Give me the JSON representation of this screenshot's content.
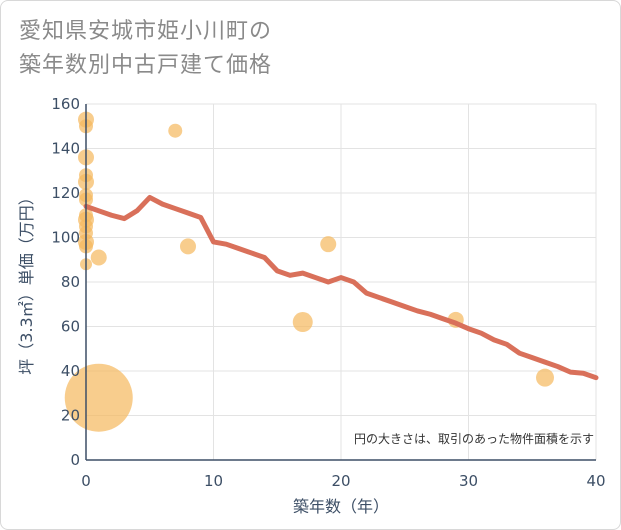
{
  "title_line1": "愛知県安城市姫小川町の",
  "title_line2": "築年数別中古戸建て価格",
  "chart_data": {
    "type": "scatter+line",
    "xlabel": "築年数（年）",
    "ylabel": "坪（3.3㎡）単価（万円）",
    "xlim": [
      0,
      40
    ],
    "ylim": [
      0,
      160
    ],
    "xticks": [
      0,
      10,
      20,
      30,
      40
    ],
    "yticks": [
      0,
      20,
      40,
      60,
      80,
      100,
      120,
      140,
      160
    ],
    "note": "円の大きさは、取引のあった物件面積を示す",
    "colors": {
      "bubble": "#f5b85c",
      "line": "#d9705a",
      "grid": "#e3e3e3",
      "axis": "#3d4f66"
    },
    "scatter": [
      {
        "x": 0,
        "y": 153,
        "s": 8
      },
      {
        "x": 0,
        "y": 150,
        "s": 7
      },
      {
        "x": 0,
        "y": 136,
        "s": 8
      },
      {
        "x": 0,
        "y": 128,
        "s": 7
      },
      {
        "x": 0,
        "y": 125,
        "s": 8
      },
      {
        "x": 0,
        "y": 119,
        "s": 7
      },
      {
        "x": 0,
        "y": 117,
        "s": 7
      },
      {
        "x": 0,
        "y": 110,
        "s": 7
      },
      {
        "x": 0,
        "y": 108,
        "s": 8
      },
      {
        "x": 0,
        "y": 105,
        "s": 7
      },
      {
        "x": 0,
        "y": 102,
        "s": 7
      },
      {
        "x": 0,
        "y": 98,
        "s": 8
      },
      {
        "x": 0,
        "y": 96,
        "s": 7
      },
      {
        "x": 0,
        "y": 88,
        "s": 6
      },
      {
        "x": 1,
        "y": 91,
        "s": 8
      },
      {
        "x": 1,
        "y": 28,
        "s": 34
      },
      {
        "x": 7,
        "y": 148,
        "s": 7
      },
      {
        "x": 8,
        "y": 96,
        "s": 8
      },
      {
        "x": 17,
        "y": 62,
        "s": 10
      },
      {
        "x": 19,
        "y": 97,
        "s": 8
      },
      {
        "x": 29,
        "y": 63,
        "s": 8
      },
      {
        "x": 36,
        "y": 37,
        "s": 9
      }
    ],
    "line": {
      "x": [
        0,
        1,
        2,
        3,
        4,
        5,
        6,
        7,
        8,
        9,
        10,
        11,
        12,
        13,
        14,
        15,
        16,
        17,
        18,
        19,
        20,
        21,
        22,
        23,
        24,
        25,
        26,
        27,
        28,
        29,
        30,
        31,
        32,
        33,
        34,
        35,
        36,
        37,
        38,
        39,
        40
      ],
      "y": [
        114,
        112,
        110,
        108.5,
        112,
        118,
        115,
        113,
        111,
        109,
        98,
        97,
        95,
        93,
        91,
        85,
        83,
        84,
        82,
        80,
        82,
        80,
        75,
        73,
        71,
        69,
        67,
        65.5,
        63.5,
        61.5,
        59,
        57,
        54,
        52,
        48,
        46,
        44,
        42,
        39.5,
        39,
        37
      ]
    }
  }
}
